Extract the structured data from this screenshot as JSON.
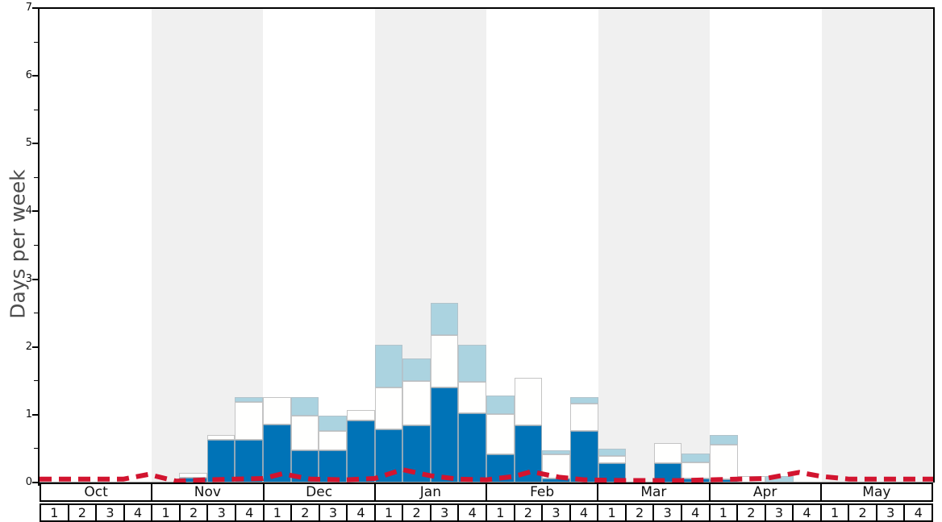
{
  "chart_data": {
    "type": "bar",
    "stacked": true,
    "title": "",
    "ylabel": "Days per week",
    "ylim": [
      0,
      7
    ],
    "y_major_ticks": [
      0,
      1,
      2,
      3,
      4,
      5,
      6,
      7
    ],
    "y_minor_tick_step": 0.5,
    "grid": false,
    "x_months": [
      "Oct",
      "Nov",
      "Dec",
      "Jan",
      "Feb",
      "Mar",
      "Apr",
      "May"
    ],
    "x_week_labels": [
      "1",
      "2",
      "3",
      "4"
    ],
    "shaded_month_indices": [
      1,
      3,
      5,
      7
    ],
    "categories": [
      "Oct-1",
      "Oct-2",
      "Oct-3",
      "Oct-4",
      "Nov-1",
      "Nov-2",
      "Nov-3",
      "Nov-4",
      "Dec-1",
      "Dec-2",
      "Dec-3",
      "Dec-4",
      "Jan-1",
      "Jan-2",
      "Jan-3",
      "Jan-4",
      "Feb-1",
      "Feb-2",
      "Feb-3",
      "Feb-4",
      "Mar-1",
      "Mar-2",
      "Mar-3",
      "Mar-4",
      "Apr-1",
      "Apr-2",
      "Apr-3",
      "Apr-4",
      "May-1",
      "May-2",
      "May-3",
      "May-4"
    ],
    "series": [
      {
        "name": "dark-blue-days",
        "color": "#0073b7",
        "border": "#8fa8b8",
        "values": [
          0,
          0,
          0,
          0,
          0,
          0.07,
          0.63,
          0.63,
          0.85,
          0.48,
          0.48,
          0.91,
          0.78,
          0.84,
          1.4,
          1.02,
          0.42,
          0.84,
          0.06,
          0.76,
          0.29,
          0,
          0.29,
          0.06,
          0.05,
          0,
          0,
          0,
          0,
          0,
          0,
          0
        ]
      },
      {
        "name": "white-days",
        "color": "#fffffe",
        "border": "#c4c4c4",
        "values": [
          0,
          0,
          0,
          0,
          0,
          0.07,
          0.07,
          0.56,
          0.41,
          0.51,
          0.28,
          0.16,
          0.62,
          0.66,
          0.77,
          0.46,
          0.59,
          0.71,
          0.36,
          0.4,
          0.1,
          0,
          0.29,
          0.24,
          0.51,
          0.1,
          0,
          0,
          0,
          0,
          0,
          0
        ]
      },
      {
        "name": "light-blue-days",
        "color": "#abd3e0",
        "border": "#b2c3cb",
        "values": [
          0,
          0,
          0,
          0,
          0,
          0,
          0,
          0.07,
          0,
          0.27,
          0.23,
          0,
          0.63,
          0.33,
          0.48,
          0.55,
          0.27,
          0,
          0.06,
          0.1,
          0.11,
          0,
          0,
          0.13,
          0.14,
          0,
          0.09,
          0,
          0,
          0,
          0,
          0
        ]
      }
    ],
    "overlay_line": {
      "name": "red-dashed-line",
      "color": "#d2142f",
      "style": "dashed",
      "x_weeks": [
        0,
        1,
        2,
        3,
        3.9,
        4.9,
        6,
        7,
        8,
        8.7,
        9.7,
        11,
        12,
        13,
        14,
        15,
        16,
        17,
        17.6,
        18.6,
        19.5,
        21,
        23,
        24,
        25,
        26,
        27.2,
        28,
        29,
        30,
        31,
        32
      ],
      "y_values": [
        0.05,
        0.05,
        0.05,
        0.05,
        0.12,
        0.02,
        0.04,
        0.05,
        0.06,
        0.13,
        0.05,
        0.04,
        0.06,
        0.19,
        0.1,
        0.05,
        0.04,
        0.09,
        0.16,
        0.08,
        0.04,
        0.03,
        0.03,
        0.04,
        0.05,
        0.06,
        0.15,
        0.09,
        0.05,
        0.05,
        0.05,
        0.05
      ]
    },
    "legend": null
  },
  "colors": {
    "background": "#ffffff",
    "month_band": "#f0f0f0",
    "axis": "#000000",
    "baseline": "#999999",
    "ylabel_text": "#4d4d4d"
  }
}
